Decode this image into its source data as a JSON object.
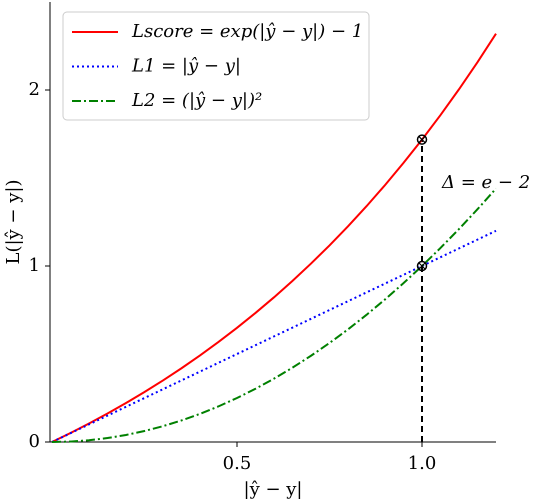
{
  "chart_data": {
    "type": "line",
    "xlabel": "|ŷ − y|",
    "ylabel": "L(|ŷ − y|)",
    "x": [
      0,
      0.05,
      0.1,
      0.15,
      0.2,
      0.25,
      0.3,
      0.35,
      0.4,
      0.45,
      0.5,
      0.55,
      0.6,
      0.65,
      0.7,
      0.75,
      0.8,
      0.85,
      0.9,
      0.95,
      1.0,
      1.05,
      1.1,
      1.15,
      1.2
    ],
    "series": [
      {
        "name": "Lscore = exp(|ŷ − y|) − 1",
        "color": "#ff0000",
        "dash": "solid",
        "values": [
          0,
          0.0513,
          0.1052,
          0.1618,
          0.2214,
          0.284,
          0.3499,
          0.4191,
          0.4918,
          0.5683,
          0.6487,
          0.7333,
          0.8221,
          0.9155,
          1.0138,
          1.117,
          1.2255,
          1.3396,
          1.4596,
          1.5857,
          1.7183,
          1.8577,
          2.0042,
          2.1582,
          2.3201
        ]
      },
      {
        "name": "L1 = |ŷ − y|",
        "color": "#0000ff",
        "dash": "dotted",
        "values": [
          0,
          0.05,
          0.1,
          0.15,
          0.2,
          0.25,
          0.3,
          0.35,
          0.4,
          0.45,
          0.5,
          0.55,
          0.6,
          0.65,
          0.7,
          0.75,
          0.8,
          0.85,
          0.9,
          0.95,
          1.0,
          1.05,
          1.1,
          1.15,
          1.2
        ]
      },
      {
        "name": "L2 = (|ŷ − y|)²",
        "color": "#008000",
        "dash": "dashdot",
        "values": [
          0,
          0.0025,
          0.01,
          0.0225,
          0.04,
          0.0625,
          0.09,
          0.1225,
          0.16,
          0.2025,
          0.25,
          0.3025,
          0.36,
          0.4225,
          0.49,
          0.5625,
          0.64,
          0.7225,
          0.81,
          0.9025,
          1,
          1.1025,
          1.21,
          1.3225,
          1.44
        ]
      }
    ],
    "markers": {
      "x": [
        1,
        1
      ],
      "y": [
        1.7183,
        1
      ]
    },
    "vline": {
      "x": 1,
      "y": [
        0,
        1.7183
      ]
    },
    "annotation": "Δ = e − 2",
    "xlim": [
      0,
      1.2
    ],
    "ylim": [
      0,
      2.5
    ],
    "xticks": [
      0.5,
      {
        "value": 1,
        "label": "1.0"
      }
    ],
    "yticks": [
      0,
      1,
      2
    ],
    "legend": "upper left"
  }
}
